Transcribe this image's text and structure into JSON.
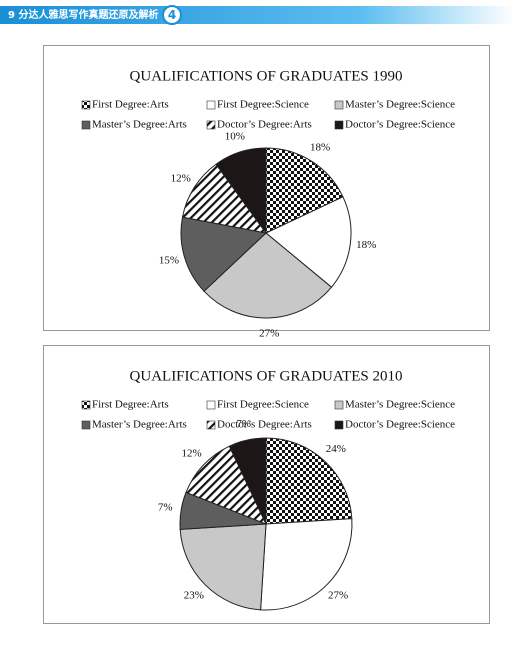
{
  "header": {
    "title": "9 分达人雅思写作真题还原及解析",
    "page": "4"
  },
  "chart_data": [
    {
      "type": "pie",
      "title": "QUALIFICATIONS OF GRADUATES 1990",
      "categories": [
        "First Degree:Arts",
        "First Degree:Science",
        "Master’s Degree:Science",
        "Master’s Degree:Arts",
        "Doctor’s Degree:Arts",
        "Doctor’s Degree:Science"
      ],
      "values": [
        18,
        18,
        27,
        15,
        12,
        10
      ],
      "value_labels": [
        "18%",
        "18%",
        "27%",
        "15%",
        "12%",
        "10%"
      ],
      "colors": [
        "checker",
        "#ffffff",
        "#c8c8c8",
        "#5e5e5e",
        "hatch",
        "#1c1616"
      ]
    },
    {
      "type": "pie",
      "title": "QUALIFICATIONS OF GRADUATES 2010",
      "categories": [
        "First Degree:Arts",
        "First Degree:Science",
        "Master’s Degree:Science",
        "Master’s Degree:Arts",
        "Doctor’s Degree:Arts",
        "Doctor’s Degree:Science"
      ],
      "values": [
        24,
        27,
        23,
        7,
        12,
        7
      ],
      "value_labels": [
        "24%",
        "27%",
        "23%",
        "7%",
        "12%",
        "7%"
      ],
      "colors": [
        "checker",
        "#ffffff",
        "#c8c8c8",
        "#5e5e5e",
        "hatch",
        "#1c1616"
      ]
    }
  ]
}
